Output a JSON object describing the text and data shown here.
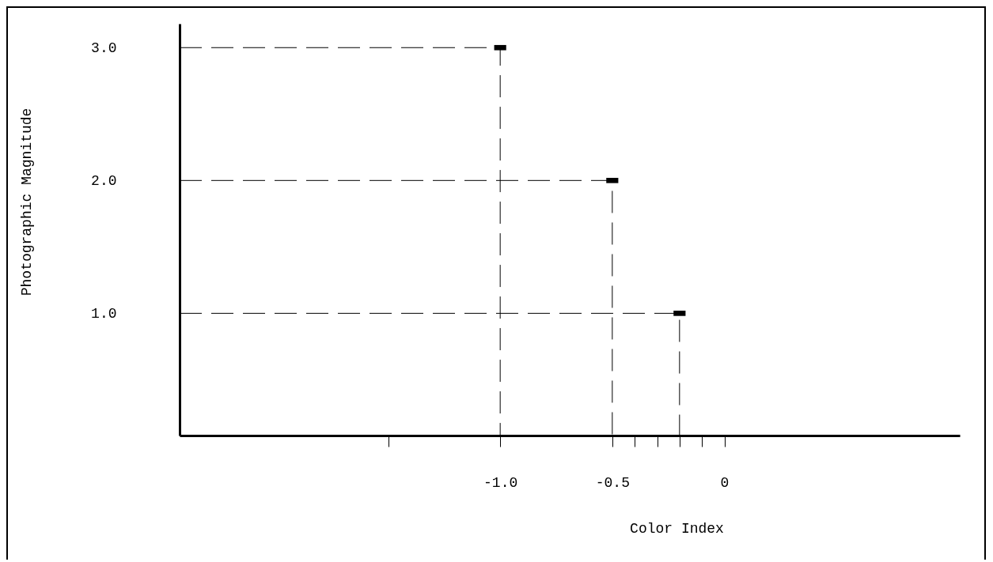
{
  "chart_data": {
    "type": "scatter",
    "xlabel": "Color Index",
    "ylabel": "Photographic Magnitude",
    "series": [
      {
        "type": "line",
        "color": "#000000",
        "line_style": "dashed",
        "marker": "none",
        "x": [
          -2.43,
          -1.0,
          -1.0
        ],
        "values": [
          3.0,
          3.0,
          0.08
        ]
      },
      {
        "type": "line",
        "color": "#000000",
        "line_style": "dashed",
        "marker": "none",
        "x": [
          -2.43,
          -0.5,
          -0.5
        ],
        "values": [
          2.0,
          2.0,
          0.08
        ]
      },
      {
        "type": "line",
        "color": "#000000",
        "line_style": "dashed",
        "marker": "none",
        "x": [
          -2.43,
          -0.2,
          -0.2
        ],
        "values": [
          1.0,
          1.0,
          0.08
        ]
      },
      {
        "color": "#000000",
        "x": [
          -1.0,
          -0.5,
          -0.2
        ],
        "values": [
          3.0,
          2.0,
          1.0
        ]
      }
    ],
    "xlim": [
      -2.43,
      1.05
    ],
    "ylim": [
      0.08,
      3.18
    ],
    "xticks": [
      {
        "value": -1.5,
        "label": null
      },
      {
        "value": -1.0,
        "label": "-1.0"
      },
      {
        "value": -0.5,
        "label": "-0.5"
      },
      {
        "value": -0.4,
        "label": null
      },
      {
        "value": -0.3,
        "label": null
      },
      {
        "value": -0.2,
        "label": null
      },
      {
        "value": -0.1,
        "label": null
      },
      0
    ],
    "yticks": [
      {
        "value": 1.0,
        "label": "1.0"
      },
      {
        "value": 2.0,
        "label": "2.0"
      },
      {
        "value": 3.0,
        "label": "3.0"
      }
    ],
    "marker": "square"
  }
}
